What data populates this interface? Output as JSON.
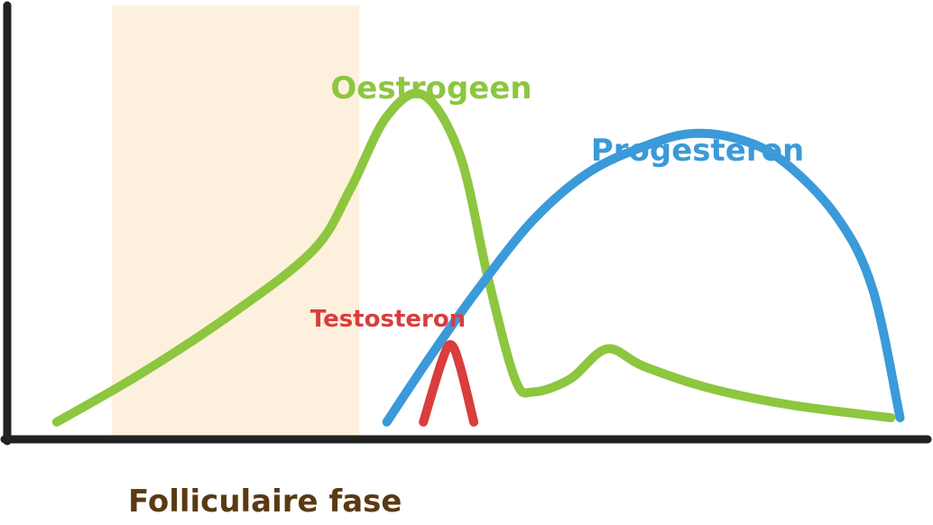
{
  "chart_data": {
    "type": "line",
    "title": "",
    "xlabel": "",
    "ylabel": "",
    "xlim": [
      0,
      100
    ],
    "ylim": [
      0,
      100
    ],
    "grid": false,
    "legend": "none",
    "highlight_band": {
      "x": [
        11,
        38
      ],
      "label": "Folliculaire fase",
      "color": "#fdf0dd"
    },
    "series": [
      {
        "name": "Oestrogeen",
        "color": "#8dc63f",
        "points": [
          [
            5,
            4
          ],
          [
            14,
            15
          ],
          [
            24,
            29
          ],
          [
            33,
            44
          ],
          [
            37,
            58
          ],
          [
            41,
            75
          ],
          [
            45,
            80
          ],
          [
            49,
            66
          ],
          [
            52,
            38
          ],
          [
            55,
            14
          ],
          [
            57,
            11
          ],
          [
            61,
            14
          ],
          [
            65,
            21
          ],
          [
            69,
            17
          ],
          [
            76,
            12
          ],
          [
            85,
            8
          ],
          [
            96,
            5
          ]
        ]
      },
      {
        "name": "Progesteron",
        "color": "#3b9ad9",
        "points": [
          [
            41,
            4
          ],
          [
            46,
            20
          ],
          [
            51,
            35
          ],
          [
            57,
            51
          ],
          [
            63,
            62
          ],
          [
            69,
            68
          ],
          [
            74,
            71
          ],
          [
            79,
            70
          ],
          [
            84,
            65
          ],
          [
            90,
            52
          ],
          [
            94,
            35
          ],
          [
            97,
            5
          ]
        ]
      },
      {
        "name": "Testosteron",
        "color": "#d93d3d",
        "points": [
          [
            45,
            4
          ],
          [
            47,
            18
          ],
          [
            48,
            22
          ],
          [
            49,
            17
          ],
          [
            50.5,
            4
          ]
        ]
      }
    ]
  }
}
